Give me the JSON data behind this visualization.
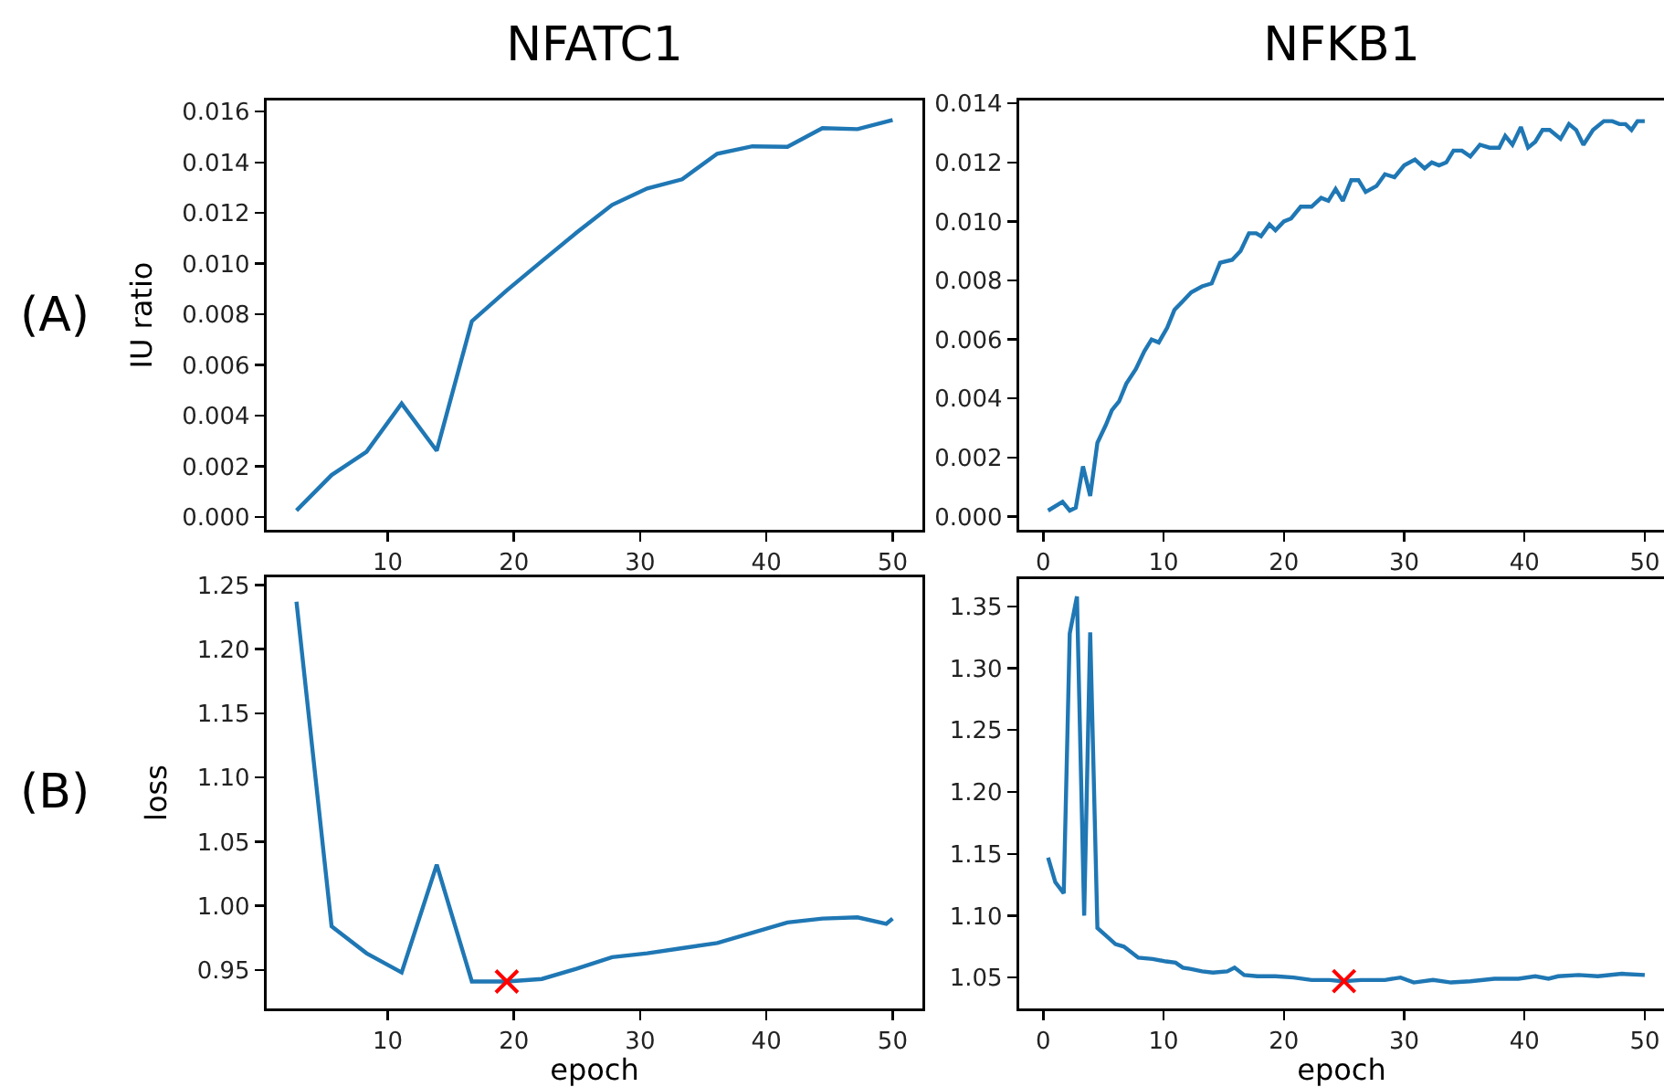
{
  "chart_data": [
    {
      "type": "line",
      "title": "NFATC1",
      "ylabel": "IU ratio",
      "annotations": [
        "(A)"
      ],
      "xlim": [
        0.42,
        52.36
      ],
      "xticks": [
        10,
        20,
        30,
        40,
        50
      ],
      "ylim": [
        -0.0005,
        0.01644
      ],
      "yticks": [
        {
          "value": 0,
          "label": "0.000"
        },
        0.002,
        0.004,
        0.006,
        0.008,
        {
          "value": 0.01,
          "label": "0.010"
        },
        0.012,
        0.014,
        0.016
      ],
      "grid": false,
      "series": [
        {
          "type": "line",
          "color": "#1f77b4",
          "marker": "none",
          "x": [
            2.78,
            5.56,
            8.33,
            11.11,
            13.89,
            16.67,
            19.44,
            22.22,
            25,
            27.78,
            30.56,
            33.33,
            36.11,
            38.89,
            41.67,
            44.44,
            47.22,
            50
          ],
          "values": [
            0.00026,
            0.00166,
            0.00258,
            0.00448,
            0.00262,
            0.00773,
            0.00895,
            0.0101,
            0.01124,
            0.01232,
            0.01297,
            0.01333,
            0.01434,
            0.01463,
            0.01461,
            0.01535,
            0.01531,
            0.01567
          ]
        }
      ]
    },
    {
      "type": "line",
      "title": "NFKB1",
      "xlim": [
        -2,
        51.6
      ],
      "xticks": [
        0,
        10,
        20,
        30,
        40,
        50
      ],
      "ylim": [
        -0.00045,
        0.0141
      ],
      "yticks": [
        {
          "value": 0,
          "label": "0.000"
        },
        0.002,
        0.004,
        0.006,
        0.008,
        {
          "value": 0.01,
          "label": "0.010"
        },
        0.012,
        0.014
      ],
      "grid": false,
      "series": [
        {
          "type": "line",
          "color": "#1f77b4",
          "marker": "none",
          "x": [
            0.4,
            1.6,
            2.2,
            2.7,
            3.3,
            3.9,
            4.5,
            5.2,
            5.7,
            6.3,
            6.9,
            7.7,
            8.4,
            9.0,
            9.6,
            10.3,
            10.9,
            11.6,
            12.3,
            13.2,
            14.0,
            14.7,
            15.7,
            16.4,
            17.1,
            17.7,
            18.1,
            18.8,
            19.3,
            20.0,
            20.6,
            21.4,
            22.3,
            23.1,
            23.7,
            24.3,
            24.9,
            25.6,
            26.2,
            26.8,
            27.7,
            28.4,
            29.2,
            30.0,
            30.9,
            31.7,
            32.3,
            32.9,
            33.5,
            34.1,
            34.8,
            35.5,
            36.3,
            37.1,
            37.9,
            38.4,
            39.0,
            39.7,
            40.3,
            40.9,
            41.5,
            42.1,
            43.0,
            43.7,
            44.3,
            44.9,
            45.7,
            46.6,
            47.3,
            47.9,
            48.4,
            48.9,
            49.4,
            50.0
          ],
          "values": [
            0.0002,
            0.0005,
            0.0002,
            0.0003,
            0.0017,
            0.0007,
            0.0025,
            0.0031,
            0.0036,
            0.0039,
            0.0045,
            0.005,
            0.0056,
            0.006,
            0.0059,
            0.0064,
            0.007,
            0.0073,
            0.0076,
            0.0078,
            0.0079,
            0.0086,
            0.0087,
            0.009,
            0.0096,
            0.0096,
            0.0095,
            0.0099,
            0.0097,
            0.01,
            0.0101,
            0.0105,
            0.0105,
            0.0108,
            0.0107,
            0.0111,
            0.0107,
            0.0114,
            0.0114,
            0.011,
            0.0112,
            0.0116,
            0.0115,
            0.0119,
            0.0121,
            0.0118,
            0.012,
            0.0119,
            0.012,
            0.0124,
            0.0124,
            0.0122,
            0.0126,
            0.0125,
            0.0125,
            0.0129,
            0.0126,
            0.0132,
            0.0125,
            0.0127,
            0.0131,
            0.0131,
            0.0128,
            0.0133,
            0.0131,
            0.0126,
            0.0131,
            0.0134,
            0.0134,
            0.0133,
            0.0133,
            0.0131,
            0.0134,
            0.0134
          ]
        }
      ]
    },
    {
      "type": "line",
      "xlabel": "epoch",
      "ylabel": "loss",
      "annotations": [
        "(B)"
      ],
      "xlim": [
        0.42,
        52.36
      ],
      "xticks": [
        10,
        20,
        30,
        40,
        50
      ],
      "ylim": [
        0.92,
        1.256
      ],
      "yticks": [
        0.95,
        {
          "value": 1,
          "label": "1.00"
        },
        1.05,
        {
          "value": 1.1,
          "label": "1.10"
        },
        1.15,
        {
          "value": 1.2,
          "label": "1.20"
        },
        1.25
      ],
      "grid": false,
      "series": [
        {
          "type": "line",
          "color": "#1f77b4",
          "marker": "none",
          "x": [
            2.78,
            5.56,
            8.33,
            11.11,
            13.89,
            16.67,
            19.44,
            22.22,
            25,
            27.78,
            30.56,
            33.33,
            36.11,
            38.89,
            41.67,
            44.44,
            47.22,
            49.5,
            50
          ],
          "values": [
            1.237,
            0.984,
            0.963,
            0.948,
            1.032,
            0.941,
            0.941,
            0.943,
            0.951,
            0.96,
            0.963,
            0.967,
            0.971,
            0.979,
            0.987,
            0.99,
            0.991,
            0.986,
            0.99
          ]
        },
        {
          "type": "scatter",
          "color": "#ff0000",
          "marker": "cross",
          "x": [
            19.44
          ],
          "values": [
            0.941
          ]
        }
      ]
    },
    {
      "type": "line",
      "xlabel": "epoch",
      "xlim": [
        -2,
        51.6
      ],
      "xticks": [
        0,
        10,
        20,
        30,
        40,
        50
      ],
      "ylim": [
        1.025,
        1.372
      ],
      "yticks": [
        1.05,
        {
          "value": 1.1,
          "label": "1.10"
        },
        1.15,
        {
          "value": 1.2,
          "label": "1.20"
        },
        1.25,
        {
          "value": 1.3,
          "label": "1.30"
        },
        1.35
      ],
      "grid": false,
      "series": [
        {
          "type": "line",
          "color": "#1f77b4",
          "marker": "none",
          "x": [
            0.4,
            1.0,
            1.7,
            2.2,
            2.8,
            3.4,
            3.9,
            4.5,
            5.2,
            6.0,
            6.7,
            7.9,
            9.1,
            10.2,
            11.0,
            11.6,
            12.2,
            13.2,
            14.1,
            15.3,
            15.9,
            16.7,
            17.8,
            19.3,
            20.8,
            22.3,
            23.8,
            24.9,
            26.4,
            28.4,
            29.7,
            30.8,
            32.4,
            33.9,
            35.5,
            37.5,
            39.5,
            40.9,
            42.0,
            42.8,
            44.5,
            46.1,
            48.1,
            50.0
          ],
          "values": [
            1.147,
            1.127,
            1.118,
            1.328,
            1.358,
            1.1,
            1.329,
            1.09,
            1.084,
            1.077,
            1.075,
            1.066,
            1.065,
            1.063,
            1.062,
            1.058,
            1.057,
            1.055,
            1.054,
            1.055,
            1.058,
            1.052,
            1.051,
            1.051,
            1.05,
            1.048,
            1.048,
            1.047,
            1.048,
            1.048,
            1.05,
            1.046,
            1.048,
            1.046,
            1.047,
            1.049,
            1.049,
            1.051,
            1.049,
            1.051,
            1.052,
            1.051,
            1.053,
            1.052
          ]
        },
        {
          "type": "scatter",
          "color": "#ff0000",
          "marker": "cross",
          "x": [
            25
          ],
          "values": [
            1.047
          ]
        }
      ]
    }
  ]
}
